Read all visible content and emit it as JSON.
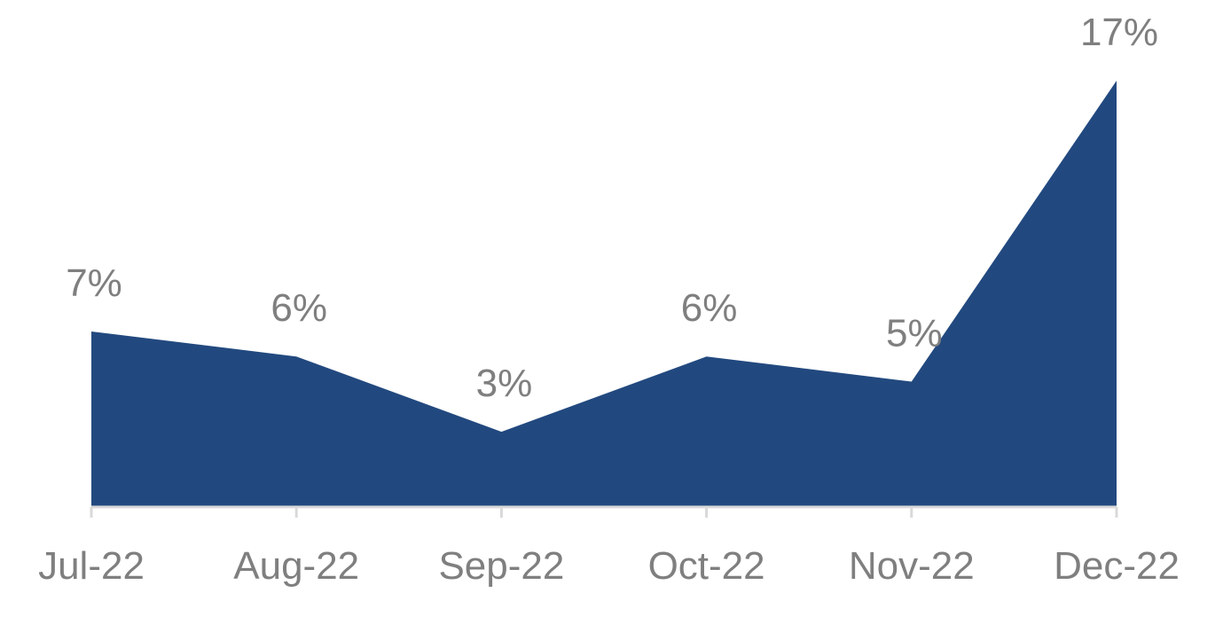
{
  "chart_data": {
    "type": "area",
    "title": "",
    "xlabel": "",
    "ylabel": "",
    "categories": [
      "Jul-22",
      "Aug-22",
      "Sep-22",
      "Oct-22",
      "Nov-22",
      "Dec-22"
    ],
    "values": [
      7,
      6,
      3,
      6,
      5,
      17
    ],
    "data_labels": [
      "7%",
      "6%",
      "3%",
      "6%",
      "5%",
      "17%"
    ],
    "value_unit": "%",
    "ylim": [
      0,
      17
    ],
    "grid": false,
    "legend": "none",
    "colors": {
      "area_fill": "#22497f",
      "axis": "#d9d9d9",
      "text": "#7f7f7f"
    }
  }
}
